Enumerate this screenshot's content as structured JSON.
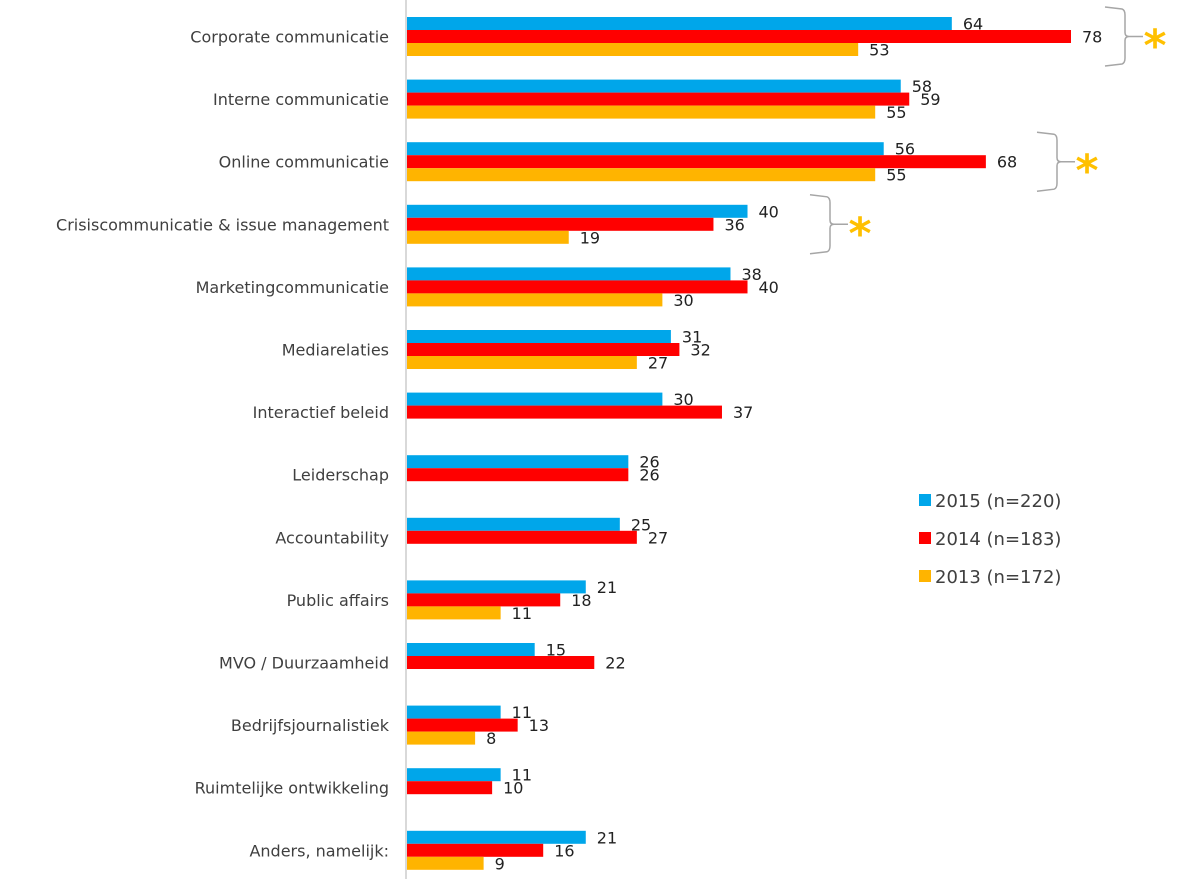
{
  "chart_data": {
    "type": "bar",
    "orientation": "horizontal",
    "title": "",
    "xlabel": "",
    "ylabel": "",
    "xlim": [
      0,
      80
    ],
    "grid": false,
    "legend_position": "right-middle",
    "categories": [
      "Corporate communicatie",
      "Interne communicatie",
      "Online communicatie",
      "Crisiscommunicatie & issue management",
      "Marketingcommunicatie",
      "Mediarelaties",
      "Interactief beleid",
      "Leiderschap",
      "Accountability",
      "Public affairs",
      "MVO / Duurzaamheid",
      "Bedrijfsjournalistiek",
      "Ruimtelijke ontwikkeling",
      "Anders, namelijk:"
    ],
    "series": [
      {
        "name": "2015 (n=220)",
        "color": "#00a6ea",
        "values": [
          64,
          58,
          56,
          40,
          38,
          31,
          30,
          26,
          25,
          21,
          15,
          11,
          11,
          21
        ]
      },
      {
        "name": "2014 (n=183)",
        "color": "#ff0000",
        "values": [
          78,
          59,
          68,
          36,
          40,
          32,
          37,
          26,
          27,
          18,
          22,
          13,
          10,
          16
        ]
      },
      {
        "name": "2013 (n=172)",
        "color": "#ffb400",
        "values": [
          53,
          55,
          55,
          19,
          30,
          27,
          null,
          null,
          null,
          11,
          null,
          8,
          null,
          9
        ]
      }
    ],
    "annotations": [
      {
        "type": "significance-bracket",
        "category": "Corporate communicatie",
        "symbol": "*"
      },
      {
        "type": "significance-bracket",
        "category": "Online communicatie",
        "symbol": "*"
      },
      {
        "type": "significance-bracket",
        "category": "Crisiscommunicatie & issue management",
        "symbol": "*"
      }
    ],
    "colors": {
      "axis": "#d9d9d9",
      "bracket": "#a6a6a6",
      "star": "#ffc000"
    }
  }
}
